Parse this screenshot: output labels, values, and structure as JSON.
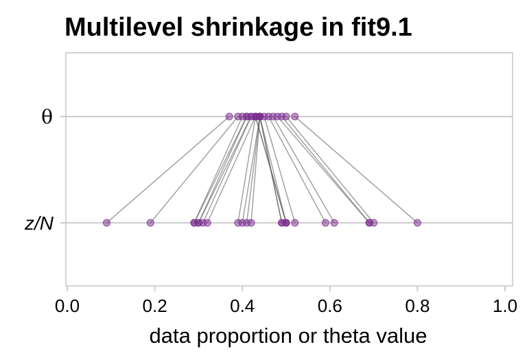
{
  "chart_data": {
    "type": "scatter",
    "title": "Multilevel shrinkage in fit9.1",
    "xlabel": "data proportion or theta value",
    "ylabel": "",
    "xlim": [
      0.0,
      1.0
    ],
    "x_ticks": [
      "0.0",
      "0.2",
      "0.4",
      "0.6",
      "0.8",
      "1.0"
    ],
    "y_categories": [
      "θ",
      "z/N"
    ],
    "grid": "horizontal",
    "point_color": "#7b2d8e",
    "line_color": "#555555",
    "pairs": [
      {
        "zN": 0.09,
        "theta": 0.37
      },
      {
        "zN": 0.19,
        "theta": 0.39
      },
      {
        "zN": 0.29,
        "theta": 0.4
      },
      {
        "zN": 0.29,
        "theta": 0.41
      },
      {
        "zN": 0.3,
        "theta": 0.41
      },
      {
        "zN": 0.3,
        "theta": 0.42
      },
      {
        "zN": 0.31,
        "theta": 0.42
      },
      {
        "zN": 0.32,
        "theta": 0.43
      },
      {
        "zN": 0.39,
        "theta": 0.43
      },
      {
        "zN": 0.4,
        "theta": 0.44
      },
      {
        "zN": 0.41,
        "theta": 0.44
      },
      {
        "zN": 0.42,
        "theta": 0.44
      },
      {
        "zN": 0.49,
        "theta": 0.44
      },
      {
        "zN": 0.49,
        "theta": 0.44
      },
      {
        "zN": 0.5,
        "theta": 0.43
      },
      {
        "zN": 0.5,
        "theta": 0.43
      },
      {
        "zN": 0.5,
        "theta": 0.44
      },
      {
        "zN": 0.52,
        "theta": 0.45
      },
      {
        "zN": 0.59,
        "theta": 0.46
      },
      {
        "zN": 0.61,
        "theta": 0.47
      },
      {
        "zN": 0.69,
        "theta": 0.48
      },
      {
        "zN": 0.69,
        "theta": 0.49
      },
      {
        "zN": 0.7,
        "theta": 0.5
      },
      {
        "zN": 0.8,
        "theta": 0.52
      }
    ]
  }
}
